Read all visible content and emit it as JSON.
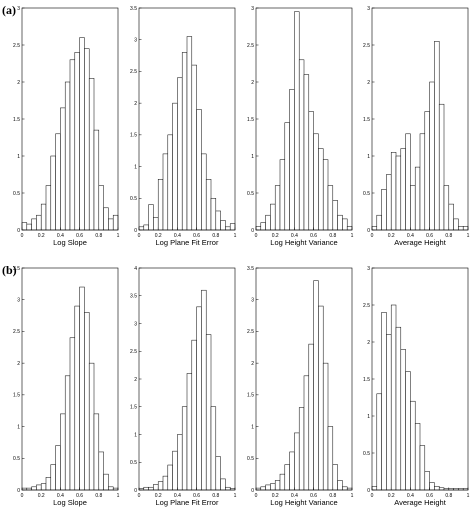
{
  "chart_data": [
    {
      "type": "bar",
      "panel_group": "(a)",
      "xlabel": "Log Slope",
      "xlim": [
        0,
        1
      ],
      "ylim": [
        0,
        3
      ],
      "xticks": [
        "0",
        "0.2",
        "0.4",
        "0.6",
        "0.8",
        "1"
      ],
      "yticks": [
        "0",
        "0.5",
        "1",
        "1.5",
        "2",
        "2.5",
        "3"
      ],
      "bin_width": 0.05,
      "bin_starts": [
        0.0,
        0.05,
        0.1,
        0.15,
        0.2,
        0.25,
        0.3,
        0.35,
        0.4,
        0.45,
        0.5,
        0.55,
        0.6,
        0.65,
        0.7,
        0.75,
        0.8,
        0.85,
        0.9,
        0.95
      ],
      "values": [
        0.1,
        0.08,
        0.15,
        0.2,
        0.35,
        0.6,
        1.0,
        1.3,
        1.65,
        2.0,
        2.3,
        2.4,
        2.6,
        2.45,
        2.05,
        1.35,
        0.6,
        0.3,
        0.15,
        0.2
      ]
    },
    {
      "type": "bar",
      "panel_group": "(a)",
      "xlabel": "Log Plane Fit Error",
      "xlim": [
        0,
        1
      ],
      "ylim": [
        0,
        3.5
      ],
      "xticks": [
        "0",
        "0.2",
        "0.4",
        "0.6",
        "0.8",
        "1"
      ],
      "yticks": [
        "0",
        "0.5",
        "1",
        "1.5",
        "2",
        "2.5",
        "3",
        "3.5"
      ],
      "bin_width": 0.05,
      "bin_starts": [
        0.0,
        0.05,
        0.1,
        0.15,
        0.2,
        0.25,
        0.3,
        0.35,
        0.4,
        0.45,
        0.5,
        0.55,
        0.6,
        0.65,
        0.7,
        0.75,
        0.8,
        0.85,
        0.9,
        0.95
      ],
      "values": [
        0.05,
        0.08,
        0.4,
        0.2,
        0.8,
        1.2,
        1.5,
        2.0,
        2.4,
        2.8,
        3.05,
        2.6,
        1.9,
        1.2,
        0.8,
        0.5,
        0.3,
        0.15,
        0.05,
        0.1
      ]
    },
    {
      "type": "bar",
      "panel_group": "(a)",
      "xlabel": "Log Height Variance",
      "xlim": [
        0,
        1
      ],
      "ylim": [
        0,
        3
      ],
      "xticks": [
        "0",
        "0.2",
        "0.4",
        "0.6",
        "0.8",
        "1"
      ],
      "yticks": [
        "0",
        "0.5",
        "1",
        "1.5",
        "2",
        "2.5",
        "3"
      ],
      "bin_width": 0.05,
      "bin_starts": [
        0.0,
        0.05,
        0.1,
        0.15,
        0.2,
        0.25,
        0.3,
        0.35,
        0.4,
        0.45,
        0.5,
        0.55,
        0.6,
        0.65,
        0.7,
        0.75,
        0.8,
        0.85,
        0.9,
        0.95
      ],
      "values": [
        0.05,
        0.1,
        0.2,
        0.35,
        0.6,
        0.95,
        1.45,
        1.9,
        2.95,
        2.3,
        2.1,
        1.6,
        1.3,
        1.1,
        0.95,
        0.6,
        0.4,
        0.2,
        0.15,
        0.05
      ]
    },
    {
      "type": "bar",
      "panel_group": "(a)",
      "xlabel": "Average Height",
      "xlim": [
        0,
        1
      ],
      "ylim": [
        0,
        3
      ],
      "xticks": [
        "0",
        "0.2",
        "0.4",
        "0.6",
        "0.8",
        "1"
      ],
      "yticks": [
        "0",
        "0.5",
        "1",
        "1.5",
        "2",
        "2.5",
        "3"
      ],
      "bin_width": 0.05,
      "bin_starts": [
        0.0,
        0.05,
        0.1,
        0.15,
        0.2,
        0.25,
        0.3,
        0.35,
        0.4,
        0.45,
        0.5,
        0.55,
        0.6,
        0.65,
        0.7,
        0.75,
        0.8,
        0.85,
        0.9,
        0.95
      ],
      "values": [
        0.05,
        0.2,
        0.55,
        0.75,
        1.05,
        1.0,
        1.1,
        1.3,
        0.6,
        0.85,
        1.3,
        1.6,
        2.0,
        2.55,
        1.7,
        0.6,
        0.35,
        0.15,
        0.05,
        0.05
      ]
    },
    {
      "type": "bar",
      "panel_group": "(b)",
      "xlabel": "Log Slope",
      "xlim": [
        0,
        1
      ],
      "ylim": [
        0,
        3.5
      ],
      "xticks": [
        "0",
        "0.2",
        "0.4",
        "0.6",
        "0.8",
        "1"
      ],
      "yticks": [
        "0",
        "0.5",
        "1",
        "1.5",
        "2",
        "2.5",
        "3",
        "3.5"
      ],
      "bin_width": 0.05,
      "bin_starts": [
        0.0,
        0.05,
        0.1,
        0.15,
        0.2,
        0.25,
        0.3,
        0.35,
        0.4,
        0.45,
        0.5,
        0.55,
        0.6,
        0.65,
        0.7,
        0.75,
        0.8,
        0.85,
        0.9,
        0.95
      ],
      "values": [
        0.03,
        0.03,
        0.05,
        0.08,
        0.1,
        0.2,
        0.4,
        0.7,
        1.2,
        1.8,
        2.4,
        2.9,
        3.2,
        2.8,
        2.0,
        1.2,
        0.6,
        0.25,
        0.05,
        0.03
      ]
    },
    {
      "type": "bar",
      "panel_group": "(b)",
      "xlabel": "Log Plane Fit Error",
      "xlim": [
        0,
        1
      ],
      "ylim": [
        0,
        4
      ],
      "xticks": [
        "0",
        "0.2",
        "0.4",
        "0.6",
        "0.8",
        "1"
      ],
      "yticks": [
        "0",
        "0.5",
        "1",
        "1.5",
        "2",
        "2.5",
        "3",
        "3.5",
        "4"
      ],
      "bin_width": 0.05,
      "bin_starts": [
        0.0,
        0.05,
        0.1,
        0.15,
        0.2,
        0.25,
        0.3,
        0.35,
        0.4,
        0.45,
        0.5,
        0.55,
        0.6,
        0.65,
        0.7,
        0.75,
        0.8,
        0.85,
        0.9,
        0.95
      ],
      "values": [
        0.03,
        0.05,
        0.05,
        0.1,
        0.15,
        0.25,
        0.45,
        0.7,
        1.0,
        1.5,
        2.1,
        2.7,
        3.3,
        3.6,
        2.8,
        1.5,
        0.6,
        0.2,
        0.05,
        0.03
      ]
    },
    {
      "type": "bar",
      "panel_group": "(b)",
      "xlabel": "Log Height Variance",
      "xlim": [
        0,
        1
      ],
      "ylim": [
        0,
        3.5
      ],
      "xticks": [
        "0",
        "0.2",
        "0.4",
        "0.6",
        "0.8",
        "1"
      ],
      "yticks": [
        "0",
        "0.5",
        "1",
        "1.5",
        "2",
        "2.5",
        "3",
        "3.5"
      ],
      "bin_width": 0.05,
      "bin_starts": [
        0.0,
        0.05,
        0.1,
        0.15,
        0.2,
        0.25,
        0.3,
        0.35,
        0.4,
        0.45,
        0.5,
        0.55,
        0.6,
        0.65,
        0.7,
        0.75,
        0.8,
        0.85,
        0.9,
        0.95
      ],
      "values": [
        0.03,
        0.05,
        0.08,
        0.1,
        0.15,
        0.25,
        0.4,
        0.6,
        0.9,
        1.3,
        1.8,
        2.3,
        3.3,
        2.9,
        2.0,
        1.0,
        0.4,
        0.15,
        0.05,
        0.03
      ]
    },
    {
      "type": "bar",
      "panel_group": "(b)",
      "xlabel": "Average Height",
      "xlim": [
        0,
        1
      ],
      "ylim": [
        0,
        3
      ],
      "xticks": [
        "0",
        "0.2",
        "0.4",
        "0.6",
        "0.8",
        "1"
      ],
      "yticks": [
        "0",
        "0.5",
        "1",
        "1.5",
        "2",
        "2.5",
        "3"
      ],
      "bin_width": 0.05,
      "bin_starts": [
        0.0,
        0.05,
        0.1,
        0.15,
        0.2,
        0.25,
        0.3,
        0.35,
        0.4,
        0.45,
        0.5,
        0.55,
        0.6,
        0.65,
        0.7,
        0.75,
        0.8,
        0.85,
        0.9,
        0.95
      ],
      "values": [
        0.05,
        1.3,
        2.4,
        2.1,
        2.5,
        2.2,
        1.9,
        1.6,
        1.2,
        0.9,
        0.6,
        0.25,
        0.1,
        0.05,
        0.03,
        0.02,
        0.02,
        0.02,
        0.02,
        0.02
      ]
    }
  ],
  "row_labels": [
    "(a)",
    "(b)"
  ]
}
